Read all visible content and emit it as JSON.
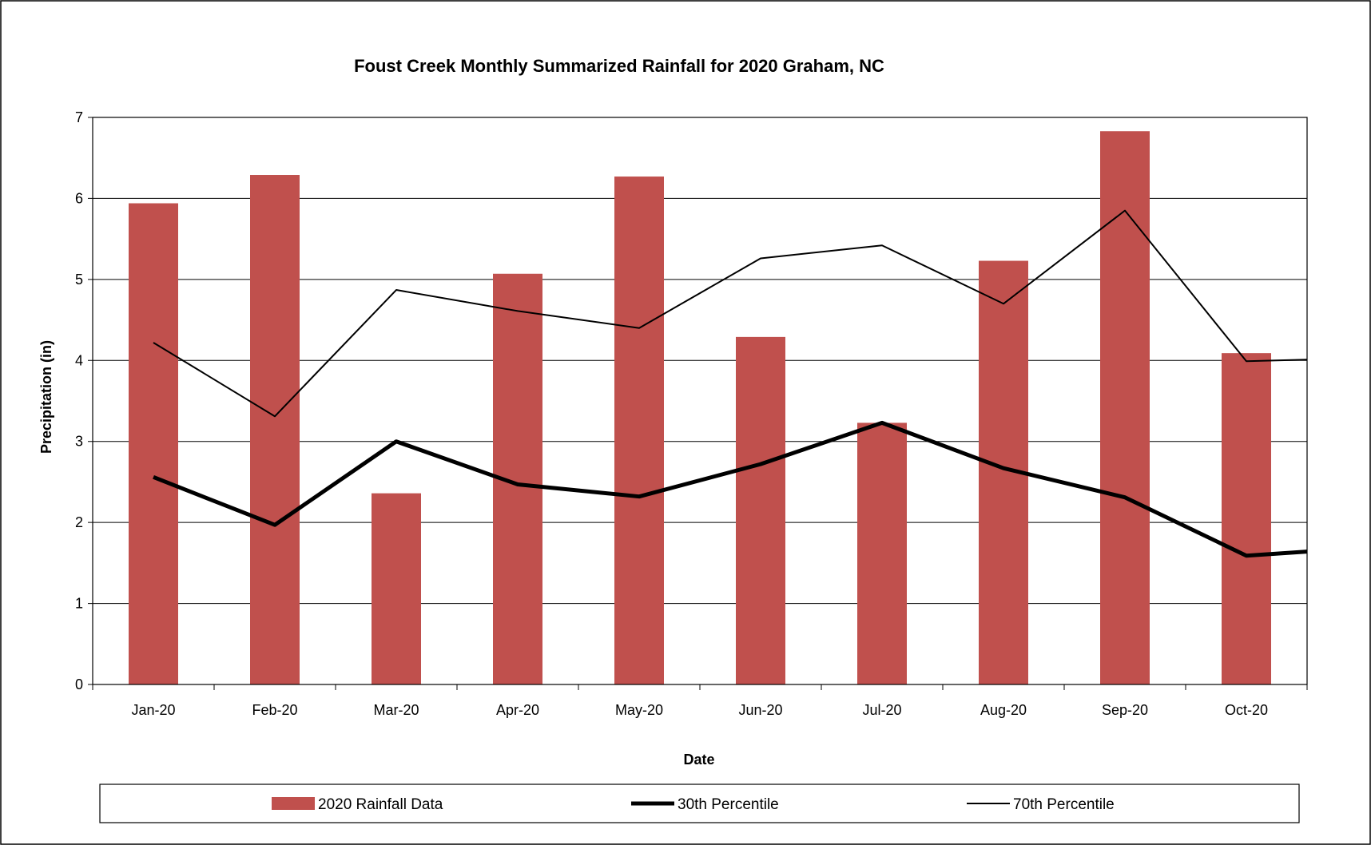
{
  "chart_data": {
    "type": "bar",
    "title": "Foust Creek Monthly Summarized Rainfall for 2020 Graham, NC",
    "xlabel": "Date",
    "ylabel": "Precipitation (in)",
    "ylim": [
      0,
      7
    ],
    "yticks": [
      "0",
      "1",
      "2",
      "3",
      "4",
      "5",
      "6",
      "7"
    ],
    "grid": true,
    "legend_position": "bottom",
    "categories": [
      "Jan-20",
      "Feb-20",
      "Mar-20",
      "Apr-20",
      "May-20",
      "Jun-20",
      "Jul-20",
      "Aug-20",
      "Sep-20",
      "Oct-20"
    ],
    "series": [
      {
        "name": "2020 Rainfall Data",
        "type": "bar",
        "color": "#c0504d",
        "values": [
          5.94,
          6.29,
          2.36,
          5.07,
          6.27,
          4.29,
          3.23,
          5.23,
          6.83,
          4.09
        ]
      },
      {
        "name": "30th Percentile",
        "type": "line",
        "color": "#000000",
        "line_weight": "thick",
        "values": [
          2.56,
          1.97,
          3.0,
          2.47,
          2.32,
          2.72,
          3.23,
          2.67,
          2.31,
          1.59
        ],
        "extends_to_right_edge": 1.64
      },
      {
        "name": "70th Percentile",
        "type": "line",
        "color": "#000000",
        "line_weight": "thin",
        "values": [
          4.22,
          3.31,
          4.87,
          4.61,
          4.4,
          5.26,
          5.42,
          4.7,
          5.85,
          3.99
        ],
        "extends_to_right_edge": 4.01
      }
    ]
  }
}
